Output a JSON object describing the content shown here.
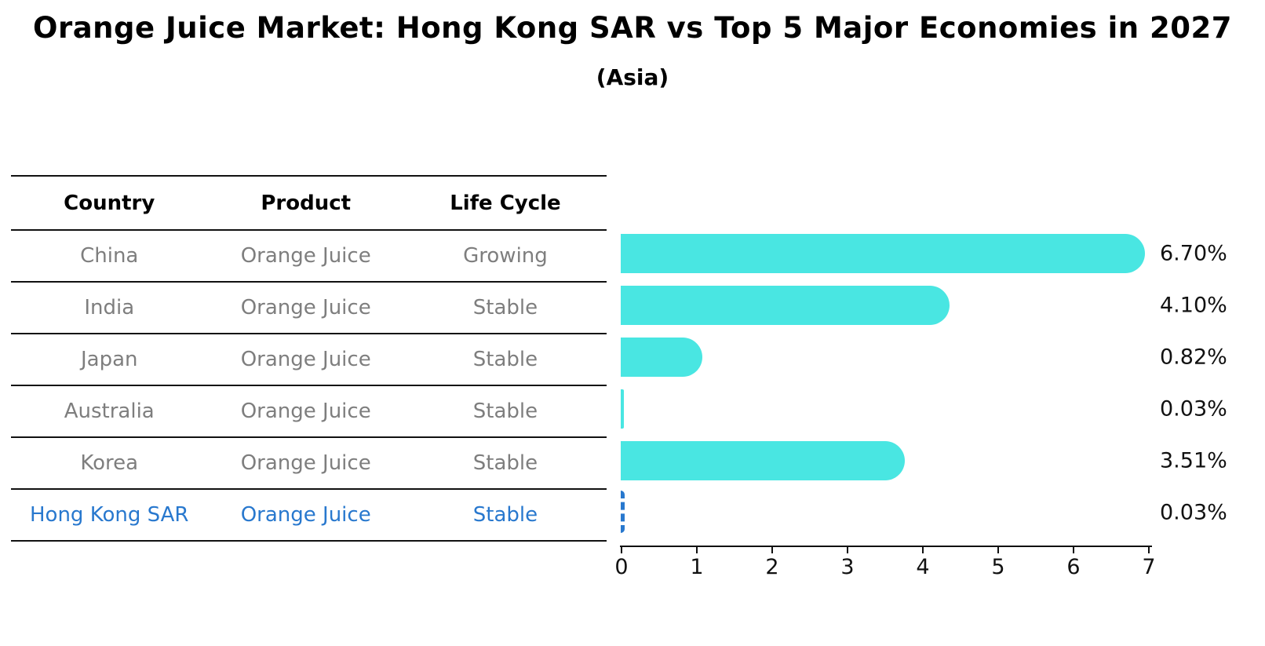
{
  "title": "Orange Juice Market: Hong Kong SAR vs Top 5 Major Economies in 2027",
  "subtitle": "(Asia)",
  "table": {
    "headers": [
      "Country",
      "Product",
      "Life Cycle"
    ],
    "rows": [
      {
        "country": "China",
        "product": "Orange Juice",
        "life_cycle": "Growing",
        "highlighted": false
      },
      {
        "country": "India",
        "product": "Orange Juice",
        "life_cycle": "Stable",
        "highlighted": false
      },
      {
        "country": "Japan",
        "product": "Orange Juice",
        "life_cycle": "Stable",
        "highlighted": false
      },
      {
        "country": "Australia",
        "product": "Orange Juice",
        "life_cycle": "Stable",
        "highlighted": false
      },
      {
        "country": "Korea",
        "product": "Orange Juice",
        "life_cycle": "Stable",
        "highlighted": false
      },
      {
        "country": "Hong Kong SAR",
        "product": "Orange Juice",
        "life_cycle": "Stable",
        "highlighted": true
      }
    ]
  },
  "chart_data": {
    "type": "bar",
    "orientation": "horizontal",
    "title": "Orange Juice Market: Hong Kong SAR vs Top 5 Major Economies in 2027",
    "subtitle": "(Asia)",
    "categories": [
      "China",
      "India",
      "Japan",
      "Australia",
      "Korea",
      "Hong Kong SAR"
    ],
    "values": [
      6.7,
      4.1,
      0.82,
      0.03,
      3.51,
      0.03
    ],
    "value_labels": [
      "6.70%",
      "4.10%",
      "0.82%",
      "0.03%",
      "3.51%",
      "0.03%"
    ],
    "x_ticks": [
      0,
      1,
      2,
      3,
      4,
      5,
      6,
      7
    ],
    "xlim": [
      0,
      7
    ],
    "xlabel": "",
    "ylabel": "",
    "grid": false,
    "legend": false,
    "highlight_index": 5,
    "highlight_style": "dashed-outline"
  },
  "colors": {
    "bar_fill": "#49e6e2",
    "highlight_blue": "#2878ce",
    "table_text_gray": "#7e7e7e",
    "text_black": "#111111",
    "background": "#ffffff"
  }
}
